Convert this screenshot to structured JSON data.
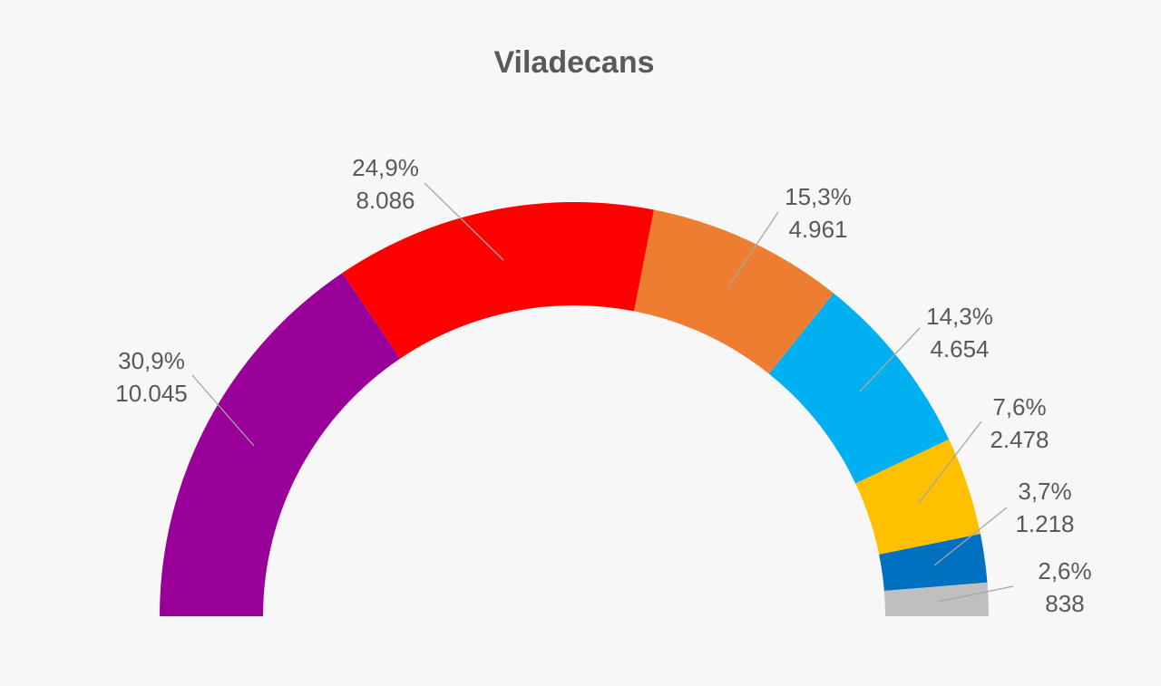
{
  "chart_data": {
    "type": "pie",
    "title": "Viladecans",
    "variant": "half-donut",
    "slices": [
      {
        "percent": "30,9%",
        "votes": "10.045",
        "value": 10045,
        "color": "#990099"
      },
      {
        "percent": "24,9%",
        "votes": "8.086",
        "value": 8086,
        "color": "#ff0000"
      },
      {
        "percent": "15,3%",
        "votes": "4.961",
        "value": 4961,
        "color": "#ed7d31"
      },
      {
        "percent": "14,3%",
        "votes": "4.654",
        "value": 4654,
        "color": "#00b0f0"
      },
      {
        "percent": "7,6%",
        "votes": "2.478",
        "value": 2478,
        "color": "#ffc000"
      },
      {
        "percent": "3,7%",
        "votes": "1.218",
        "value": 1218,
        "color": "#0070c0"
      },
      {
        "percent": "2,6%",
        "votes": "838",
        "value": 838,
        "color": "#bfbfbf"
      }
    ]
  }
}
